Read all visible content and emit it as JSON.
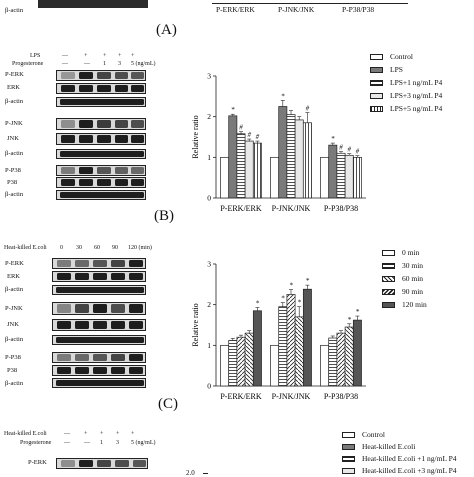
{
  "top_strip": {
    "blot_label": "β-actin",
    "panel_letter": "(A)",
    "xlabels": [
      "P-ERK/ERK",
      "P-JNK/JNK",
      "P-P38/P38"
    ]
  },
  "panel_b": {
    "letter": "(B)",
    "treat_labels": [
      "LPS",
      "Progesterone"
    ],
    "lps_marks": [
      "—",
      "+",
      "+",
      "+",
      "+"
    ],
    "prog_marks": [
      "—",
      "—",
      "1",
      "3",
      "5 (ng/mL)"
    ],
    "blot_labels": [
      "P-ERK",
      "ERK",
      "β-actin",
      "P-JNK",
      "JNK",
      "β-actin",
      "P-P38",
      "P38",
      "β-actin"
    ],
    "legend": [
      "Control",
      "LPS",
      "LPS+1 ng/mL P4",
      "LPS+3 ng/mL P4",
      "LPS+5 ng/mL P4"
    ]
  },
  "panel_c": {
    "letter": "(C)",
    "time_header": "Heat-killed E.coli",
    "time_marks": [
      "0",
      "30",
      "60",
      "90",
      "120 (min)"
    ],
    "blot_labels": [
      "P-ERK",
      "ERK",
      "β-actin",
      "P-JNK",
      "JNK",
      "β-actin",
      "P-P38",
      "P38",
      "β-actin"
    ],
    "legend": [
      "0 min",
      "30 min",
      "60 min",
      "90 min",
      "120 min"
    ]
  },
  "panel_d": {
    "treat_labels": [
      "Heat-killed E.coli",
      "Progesterone"
    ],
    "ecoli_marks": [
      "—",
      "+",
      "+",
      "+",
      "+"
    ],
    "prog_marks": [
      "—",
      "—",
      "1",
      "3",
      "5 (ng/mL)"
    ],
    "blot_label": "P-ERK",
    "ytick": "2.0",
    "legend": [
      "Control",
      "Heat-killed E.coli",
      "Heat-killed E.coli +1 ng/mL P4",
      "Heat-killed E.coli +3 ng/mL P4"
    ]
  },
  "chart_data": [
    {
      "type": "bar",
      "ylabel": "Relative ratio",
      "ylim": [
        0,
        3
      ],
      "yticks": [
        0,
        1,
        2,
        3
      ],
      "categories": [
        "P-ERK/ERK",
        "P-JNK/JNK",
        "P-P38/P38"
      ],
      "series": [
        {
          "name": "Control",
          "values": [
            1.0,
            1.0,
            1.0
          ],
          "errors": [
            0.0,
            0.0,
            0.0
          ],
          "marks": [
            "",
            "",
            ""
          ]
        },
        {
          "name": "LPS",
          "values": [
            2.02,
            2.25,
            1.3
          ],
          "errors": [
            0.04,
            0.15,
            0.05
          ],
          "marks": [
            "*",
            "*",
            "*"
          ]
        },
        {
          "name": "LPS+1 ng/mL P4",
          "values": [
            1.58,
            2.05,
            1.1
          ],
          "errors": [
            0.05,
            0.1,
            0.04
          ],
          "marks": [
            "#",
            "",
            "#"
          ]
        },
        {
          "name": "LPS+3 ng/mL P4",
          "values": [
            1.4,
            1.92,
            1.05
          ],
          "errors": [
            0.05,
            0.08,
            0.04
          ],
          "marks": [
            "#",
            "",
            "#"
          ]
        },
        {
          "name": "LPS+5 ng/mL P4",
          "values": [
            1.35,
            1.85,
            1.0
          ],
          "errors": [
            0.05,
            0.25,
            0.04
          ],
          "marks": [
            "#",
            "#",
            "#"
          ]
        }
      ]
    },
    {
      "type": "bar",
      "ylabel": "Relative ratio",
      "ylim": [
        0,
        3
      ],
      "yticks": [
        0,
        1,
        2,
        3
      ],
      "categories": [
        "P-ERK/ERK",
        "P-JNK/JNK",
        "P-P38/P38"
      ],
      "series": [
        {
          "name": "0 min",
          "values": [
            1.0,
            1.0,
            1.0
          ],
          "errors": [
            0.0,
            0.0,
            0.0
          ],
          "marks": [
            "",
            "",
            ""
          ]
        },
        {
          "name": "30 min",
          "values": [
            1.12,
            1.95,
            1.18
          ],
          "errors": [
            0.05,
            0.1,
            0.05
          ],
          "marks": [
            "",
            "*",
            ""
          ]
        },
        {
          "name": "60 min",
          "values": [
            1.2,
            2.25,
            1.3
          ],
          "errors": [
            0.05,
            0.12,
            0.06
          ],
          "marks": [
            "",
            "*",
            ""
          ]
        },
        {
          "name": "90 min",
          "values": [
            1.3,
            1.7,
            1.45
          ],
          "errors": [
            0.06,
            0.25,
            0.08
          ],
          "marks": [
            "",
            "*",
            "*"
          ]
        },
        {
          "name": "120 min",
          "values": [
            1.85,
            2.38,
            1.62
          ],
          "errors": [
            0.08,
            0.1,
            0.1
          ],
          "marks": [
            "*",
            "*",
            "*"
          ]
        }
      ]
    }
  ]
}
